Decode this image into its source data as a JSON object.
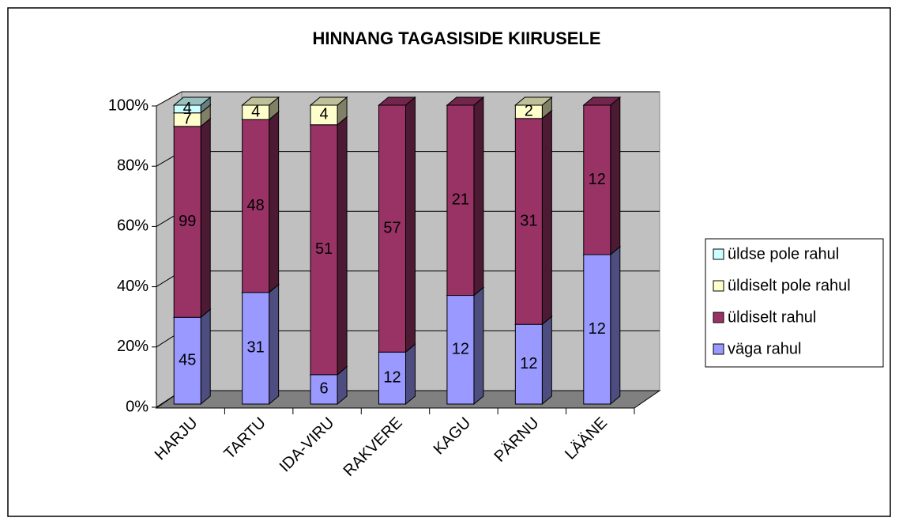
{
  "chart_data": {
    "type": "bar",
    "stacked_percent": true,
    "title": "HINNANG TAGASISIDE KIIRUSELE",
    "categories": [
      "HARJU",
      "TARTU",
      "IDA-VIRU",
      "RAKVERE",
      "KAGU",
      "PÄRNU",
      "LÄÄNE"
    ],
    "series": [
      {
        "name": "väga rahul",
        "color": "#9999ff",
        "values": [
          45,
          31,
          6,
          12,
          12,
          12,
          12
        ]
      },
      {
        "name": "üldiselt rahul",
        "color": "#993366",
        "values": [
          99,
          48,
          51,
          57,
          21,
          31,
          12
        ]
      },
      {
        "name": "üldiselt pole rahul",
        "color": "#ffffcc",
        "values": [
          7,
          4,
          4,
          null,
          null,
          2,
          null
        ]
      },
      {
        "name": "üldse pole rahul",
        "color": "#ccffff",
        "values": [
          4,
          null,
          null,
          null,
          null,
          null,
          null
        ]
      }
    ],
    "ylim": [
      0,
      100
    ],
    "yticks": [
      {
        "value": 0,
        "label": "0%"
      },
      {
        "value": 20,
        "label": "20%"
      },
      {
        "value": 40,
        "label": "40%"
      },
      {
        "value": 60,
        "label": "60%"
      },
      {
        "value": 80,
        "label": "80%"
      },
      {
        "value": 100,
        "label": "100%"
      }
    ],
    "grid": true,
    "legend": "right"
  }
}
